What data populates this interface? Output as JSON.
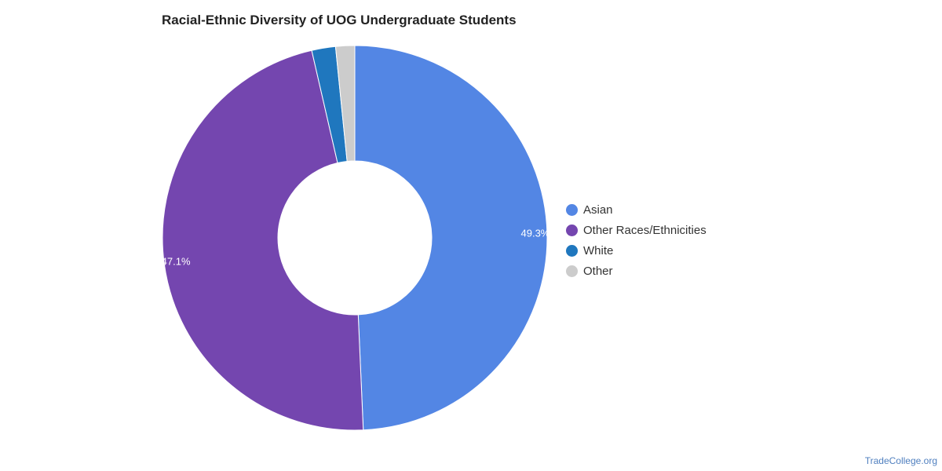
{
  "title": "Racial-Ethnic Diversity of UOG Undergraduate Students",
  "source": "TradeCollege.org",
  "chart_data": {
    "type": "pie",
    "variant": "donut",
    "title": "Racial-Ethnic Diversity of UOG Undergraduate Students",
    "legend_position": "right",
    "slices": [
      {
        "name": "Asian",
        "value": 49.3,
        "label": "49.3%",
        "color": "#5386e4"
      },
      {
        "name": "Other Races/Ethnicities",
        "value": 47.1,
        "label": "47.1%",
        "color": "#7446af"
      },
      {
        "name": "White",
        "value": 2.0,
        "label": "",
        "color": "#1f77be"
      },
      {
        "name": "Other",
        "value": 1.6,
        "label": "",
        "color": "#cccccc"
      }
    ]
  }
}
